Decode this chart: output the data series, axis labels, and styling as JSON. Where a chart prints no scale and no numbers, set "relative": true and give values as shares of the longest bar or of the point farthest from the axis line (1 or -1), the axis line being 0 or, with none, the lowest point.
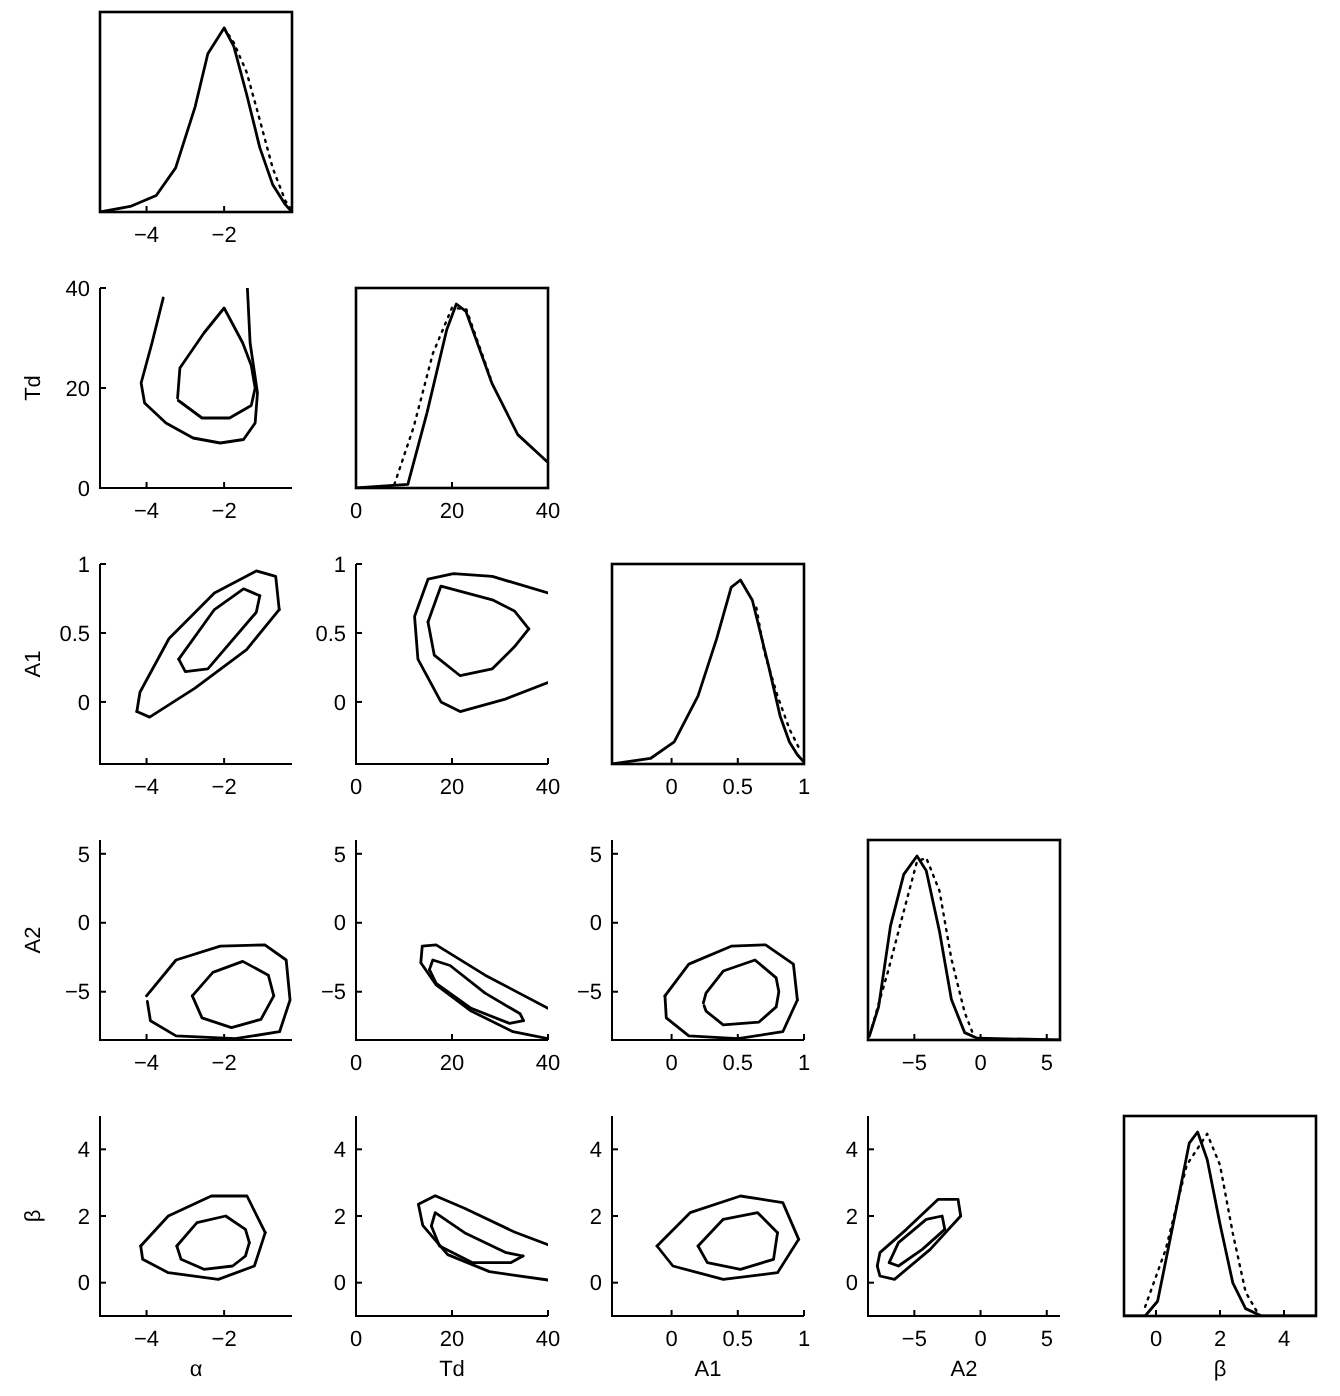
{
  "chart_data": [
    {
      "type": "line",
      "relative": true,
      "tick_labels": "x",
      "xlim": [
        -5.2,
        -0.25
      ],
      "xticks": [
        -4,
        -2
      ],
      "series": [
        {
          "color": "#000000",
          "line_style": "solid",
          "x": [
            -5.2,
            -4.42,
            -3.75,
            -3.25,
            -2.75,
            -2.42,
            -2.0,
            -1.75,
            -1.42,
            -1.08,
            -0.75,
            -0.42,
            -0.25
          ],
          "values": [
            0,
            0.03,
            0.09,
            0.24,
            0.57,
            0.86,
            1,
            0.9,
            0.64,
            0.35,
            0.15,
            0.04,
            0
          ]
        },
        {
          "color": "#000000",
          "line_style": "dotted",
          "x": [
            -2.0,
            -1.75,
            -1.42,
            -1.08,
            -0.75,
            -0.42,
            -0.25
          ],
          "values": [
            1,
            0.92,
            0.76,
            0.5,
            0.24,
            0.06,
            0.01
          ]
        }
      ]
    },
    {
      "type": "line",
      "ylabel": "Td",
      "xlim": [
        -5.2,
        -0.25
      ],
      "xticks": [
        -4,
        -2
      ],
      "ylim": [
        0,
        40
      ],
      "yticks": [
        0,
        20,
        40
      ],
      "series": [
        {
          "color": "#000000",
          "x": [
            -3.57,
            -3.86,
            -4.14,
            -4.05,
            -3.5,
            -2.8,
            -2.1,
            -1.5,
            -1.2,
            -1.14,
            -1.33,
            -1.4
          ],
          "values": [
            38,
            29,
            21,
            17,
            13,
            10,
            9,
            9.7,
            13,
            19,
            29,
            40
          ]
        },
        {
          "color": "#000000",
          "x": [
            -3.2,
            -3.14,
            -2.52,
            -2,
            -1.52,
            -1.3,
            -1.2,
            -1.3,
            -1.86,
            -2.57,
            -3.18
          ],
          "values": [
            18,
            24,
            31,
            36,
            29,
            24.5,
            20,
            16.5,
            14,
            14,
            17.5
          ]
        }
      ]
    },
    {
      "type": "line",
      "relative": true,
      "tick_labels": "x",
      "xlim": [
        0,
        40
      ],
      "xticks": [
        0,
        20,
        40
      ],
      "series": [
        {
          "color": "#000000",
          "line_style": "solid",
          "x": [
            0,
            10.8,
            14.8,
            18.9,
            20.9,
            22.9,
            28.3,
            33.7,
            39.1,
            40
          ],
          "values": [
            0,
            0.02,
            0.41,
            0.86,
            1,
            0.96,
            0.57,
            0.29,
            0.16,
            0.14
          ]
        },
        {
          "color": "#000000",
          "line_style": "dotted",
          "x": [
            8,
            12,
            16,
            20,
            23,
            28
          ],
          "values": [
            0.02,
            0.33,
            0.73,
            0.98,
            0.97,
            0.6
          ]
        }
      ]
    },
    {
      "type": "line",
      "ylabel": "A1",
      "xlim": [
        -5.2,
        -0.25
      ],
      "xticks": [
        -4,
        -2
      ],
      "ylim": [
        -0.45,
        1
      ],
      "yticks": [
        0,
        0.5,
        1
      ],
      "series": [
        {
          "color": "#000000",
          "x": [
            -4.25,
            -3.92,
            -2.75,
            -1.42,
            -0.58
          ],
          "values": [
            -0.07,
            -0.11,
            0.1,
            0.38,
            0.67
          ]
        },
        {
          "color": "#000000",
          "x": [
            -4.25,
            -4.17,
            -3.42,
            -2.25,
            -1.17,
            -0.67,
            -0.58
          ],
          "values": [
            -0.07,
            0.07,
            0.46,
            0.79,
            0.95,
            0.91,
            0.67
          ]
        },
        {
          "color": "#000000",
          "x": [
            -3.17,
            -3.0,
            -2.42,
            -1.17,
            -1.08
          ],
          "values": [
            0.31,
            0.22,
            0.24,
            0.65,
            0.77
          ]
        },
        {
          "color": "#000000",
          "x": [
            -3.17,
            -2.25,
            -1.5,
            -1.08
          ],
          "values": [
            0.31,
            0.67,
            0.82,
            0.77
          ]
        }
      ]
    },
    {
      "type": "line",
      "xlim": [
        0,
        40
      ],
      "xticks": [
        0,
        20,
        40
      ],
      "ylim": [
        -0.45,
        1
      ],
      "yticks": [
        0,
        0.5,
        1
      ],
      "series": [
        {
          "color": "#000000",
          "x": [
            40,
            28.4,
            20.3,
            15,
            12.2,
            12.9,
            17.7,
            21.7,
            31.1,
            40
          ],
          "values": [
            0.79,
            0.91,
            0.93,
            0.89,
            0.62,
            0.31,
            0,
            -0.07,
            0.02,
            0.14
          ]
        },
        {
          "color": "#000000",
          "x": [
            15,
            17.7,
            28.4,
            33,
            36
          ],
          "values": [
            0.58,
            0.84,
            0.74,
            0.66,
            0.53
          ]
        },
        {
          "color": "#000000",
          "x": [
            15,
            16.3,
            21.7,
            28.4,
            33,
            36
          ],
          "values": [
            0.58,
            0.34,
            0.19,
            0.24,
            0.4,
            0.53
          ]
        }
      ]
    },
    {
      "type": "line",
      "relative": true,
      "tick_labels": "x",
      "xlim": [
        -0.45,
        1
      ],
      "xticks": [
        0,
        0.5,
        1
      ],
      "series": [
        {
          "color": "#000000",
          "line_style": "solid",
          "x": [
            -0.45,
            -0.16,
            0.02,
            0.2,
            0.34,
            0.45,
            0.52,
            0.61,
            0.73,
            0.82,
            0.89,
            0.95,
            1
          ],
          "values": [
            0,
            0.03,
            0.12,
            0.37,
            0.68,
            0.96,
            1,
            0.89,
            0.54,
            0.26,
            0.12,
            0.05,
            0.01
          ]
        },
        {
          "color": "#000000",
          "line_style": "dotted",
          "x": [
            0.64,
            0.7,
            0.8,
            0.89,
            0.96
          ],
          "values": [
            0.85,
            0.61,
            0.37,
            0.19,
            0.09
          ]
        }
      ]
    },
    {
      "type": "line",
      "ylabel": "A2",
      "xlim": [
        -5.2,
        -0.25
      ],
      "xticks": [
        -4,
        -2
      ],
      "ylim": [
        -8.5,
        6
      ],
      "yticks": [
        -5,
        0,
        5
      ],
      "series": [
        {
          "color": "#000000",
          "x": [
            -4,
            -3.24,
            -2.1,
            -0.95,
            -0.4,
            -0.3,
            -0.57,
            -1.71,
            -3.24,
            -3.9,
            -3.98
          ],
          "values": [
            -5.3,
            -2.7,
            -1.7,
            -1.6,
            -2.7,
            -5.6,
            -7.9,
            -8.4,
            -8.2,
            -7.1,
            -5.7
          ]
        },
        {
          "color": "#000000",
          "x": [
            -2.82,
            -2.29,
            -1.52,
            -0.86,
            -0.72
          ],
          "values": [
            -5.3,
            -3.6,
            -2.8,
            -3.8,
            -5.3
          ]
        },
        {
          "color": "#000000",
          "x": [
            -2.82,
            -2.57,
            -1.81,
            -1.05,
            -0.72
          ],
          "values": [
            -5.3,
            -6.9,
            -7.6,
            -7.0,
            -5.3
          ]
        }
      ]
    },
    {
      "type": "line",
      "xlim": [
        0,
        40
      ],
      "xticks": [
        0,
        20,
        40
      ],
      "ylim": [
        -8.5,
        6
      ],
      "yticks": [
        -5,
        0,
        5
      ],
      "series": [
        {
          "color": "#000000",
          "x": [
            40,
            32.7,
            24,
            16.7,
            13.5,
            13.8,
            16.7,
            26.9,
            40
          ],
          "values": [
            -8.4,
            -7.9,
            -6.4,
            -4.5,
            -2.9,
            -1.7,
            -1.6,
            -3.8,
            -6.2
          ]
        },
        {
          "color": "#000000",
          "x": [
            15.3,
            16,
            19.6,
            26.9,
            34.2,
            34.9
          ],
          "values": [
            -3.4,
            -2.7,
            -3.1,
            -5.1,
            -6.6,
            -7.1
          ]
        },
        {
          "color": "#000000",
          "x": [
            15.3,
            16.7,
            24,
            32,
            34.9
          ],
          "values": [
            -3.4,
            -4.4,
            -6.2,
            -7.3,
            -7.1
          ]
        }
      ]
    },
    {
      "type": "line",
      "xlim": [
        -0.45,
        1
      ],
      "xticks": [
        0,
        0.5,
        1
      ],
      "ylim": [
        -8.5,
        6
      ],
      "yticks": [
        -5,
        0,
        5
      ],
      "series": [
        {
          "color": "#000000",
          "x": [
            -0.05,
            0.13,
            0.45,
            0.71,
            0.92,
            0.95
          ],
          "values": [
            -5.3,
            -3.0,
            -1.7,
            -1.6,
            -3.0,
            -5.6
          ]
        },
        {
          "color": "#000000",
          "x": [
            -0.05,
            -0.04,
            0.13,
            0.5,
            0.84,
            0.95
          ],
          "values": [
            -5.3,
            -6.9,
            -8.2,
            -8.4,
            -7.9,
            -5.6
          ]
        },
        {
          "color": "#000000",
          "x": [
            0.24,
            0.26,
            0.39,
            0.63,
            0.79,
            0.81,
            0.79,
            0.66,
            0.39,
            0.26,
            0.245
          ],
          "values": [
            -5.8,
            -5.1,
            -3.5,
            -2.7,
            -4.0,
            -5.0,
            -6.1,
            -7.2,
            -7.4,
            -6.4,
            -6.0
          ]
        }
      ]
    },
    {
      "type": "line",
      "relative": true,
      "tick_labels": "x",
      "xlim": [
        -8.5,
        6
      ],
      "xticks": [
        -5,
        0,
        5
      ],
      "series": [
        {
          "color": "#000000",
          "line_style": "solid",
          "x": [
            -8.4,
            -7.7,
            -6.8,
            -5.8,
            -4.8,
            -4.1,
            -3.1,
            -2.2,
            -1.2,
            -0.25,
            6
          ],
          "values": [
            0.02,
            0.18,
            0.62,
            0.9,
            1,
            0.92,
            0.59,
            0.22,
            0.04,
            0.01,
            0
          ]
        },
        {
          "color": "#000000",
          "line_style": "dotted",
          "x": [
            -8.2,
            -7.0,
            -5.8,
            -4.8,
            -4.1,
            -3.1,
            -2.2,
            -1.2,
            -0.5
          ],
          "values": [
            0.07,
            0.37,
            0.7,
            0.97,
            0.99,
            0.81,
            0.44,
            0.15,
            0.02
          ]
        }
      ]
    },
    {
      "type": "line",
      "xlabel": "α",
      "ylabel": "β",
      "xlim": [
        -5.2,
        -0.25
      ],
      "xticks": [
        -4,
        -2
      ],
      "ylim": [
        -1,
        5
      ],
      "yticks": [
        0,
        2,
        4
      ],
      "series": [
        {
          "color": "#000000",
          "x": [
            -4.15,
            -3.44,
            -2.33,
            -1.41,
            -0.94
          ],
          "values": [
            1.1,
            2.0,
            2.6,
            2.6,
            1.5
          ]
        },
        {
          "color": "#000000",
          "x": [
            -4.15,
            -4.1,
            -3.44,
            -2.15,
            -1.22,
            -0.94
          ],
          "values": [
            1.1,
            0.7,
            0.3,
            0.1,
            0.5,
            1.5
          ]
        },
        {
          "color": "#000000",
          "x": [
            -3.22,
            -2.7,
            -1.96,
            -1.45,
            -1.35
          ],
          "values": [
            1.1,
            1.8,
            2.0,
            1.6,
            1.2
          ]
        },
        {
          "color": "#000000",
          "x": [
            -3.22,
            -3.11,
            -2.52,
            -1.78,
            -1.45,
            -1.35
          ],
          "values": [
            1.1,
            0.7,
            0.4,
            0.5,
            0.8,
            1.2
          ]
        }
      ]
    },
    {
      "type": "line",
      "xlabel": "Td",
      "xlim": [
        0,
        40
      ],
      "xticks": [
        0,
        20,
        40
      ],
      "ylim": [
        -1,
        5
      ],
      "yticks": [
        0,
        2,
        4
      ],
      "series": [
        {
          "color": "#000000",
          "x": [
            40,
            33,
            22.6,
            16.5,
            13,
            13.9,
            19.1,
            27.8,
            40
          ],
          "values": [
            1.14,
            1.52,
            2.23,
            2.61,
            2.35,
            1.72,
            0.84,
            0.33,
            0.08
          ]
        },
        {
          "color": "#000000",
          "x": [
            15.7,
            16.5,
            22.6,
            31.3,
            34.8
          ],
          "values": [
            1.7,
            2.1,
            1.5,
            0.9,
            0.8
          ]
        },
        {
          "color": "#000000",
          "x": [
            15.7,
            17.4,
            24.3,
            32.2,
            34.8
          ],
          "values": [
            1.7,
            1.1,
            0.6,
            0.6,
            0.8
          ]
        }
      ]
    },
    {
      "type": "line",
      "xlabel": "A1",
      "xlim": [
        -0.45,
        1
      ],
      "xticks": [
        0,
        0.5,
        1
      ],
      "ylim": [
        -1,
        5
      ],
      "yticks": [
        0,
        2,
        4
      ],
      "series": [
        {
          "color": "#000000",
          "x": [
            -0.11,
            0.14,
            0.52,
            0.84,
            0.96
          ],
          "values": [
            1.1,
            2.1,
            2.6,
            2.4,
            1.3
          ]
        },
        {
          "color": "#000000",
          "x": [
            -0.11,
            0.01,
            0.39,
            0.8,
            0.96
          ],
          "values": [
            1.1,
            0.5,
            0.1,
            0.3,
            1.3
          ]
        },
        {
          "color": "#000000",
          "x": [
            0.2,
            0.39,
            0.65,
            0.8
          ],
          "values": [
            1.1,
            1.9,
            2.1,
            1.5
          ]
        },
        {
          "color": "#000000",
          "x": [
            0.2,
            0.27,
            0.52,
            0.77,
            0.8
          ],
          "values": [
            1.1,
            0.6,
            0.4,
            0.7,
            1.5
          ]
        }
      ]
    },
    {
      "type": "line",
      "xlabel": "A2",
      "xlim": [
        -8.5,
        6
      ],
      "xticks": [
        -5,
        0,
        5
      ],
      "ylim": [
        -1,
        5
      ],
      "yticks": [
        0,
        2,
        4
      ],
      "series": [
        {
          "color": "#000000",
          "x": [
            -7.8,
            -7.6,
            -5.6,
            -3.2,
            -1.7,
            -1.5
          ],
          "values": [
            0.5,
            0.9,
            1.6,
            2.5,
            2.5,
            2.0
          ]
        },
        {
          "color": "#000000",
          "x": [
            -7.8,
            -7.6,
            -6.5,
            -3.8,
            -1.5
          ],
          "values": [
            0.5,
            0.2,
            0.1,
            1.0,
            2.0
          ]
        },
        {
          "color": "#000000",
          "x": [
            -6.9,
            -6.2,
            -4.1,
            -2.9,
            -2.7
          ],
          "values": [
            0.6,
            1.2,
            1.9,
            2.0,
            1.6
          ]
        },
        {
          "color": "#000000",
          "x": [
            -6.9,
            -6.2,
            -4.4,
            -2.7
          ],
          "values": [
            0.6,
            0.5,
            1.0,
            1.6
          ]
        }
      ]
    },
    {
      "type": "line",
      "relative": true,
      "tick_labels": "x",
      "xlabel": "β",
      "xlim": [
        -1,
        5
      ],
      "xticks": [
        0,
        2,
        4
      ],
      "series": [
        {
          "color": "#000000",
          "line_style": "solid",
          "x": [
            -1,
            -0.34,
            0.05,
            0.7,
            1.04,
            1.3,
            1.6,
            2.0,
            2.4,
            2.8,
            3.3,
            5
          ],
          "values": [
            0,
            0,
            0.08,
            0.64,
            0.94,
            1,
            0.85,
            0.5,
            0.18,
            0.04,
            0,
            0
          ]
        },
        {
          "color": "#000000",
          "line_style": "dotted",
          "x": [
            -0.34,
            0.3,
            0.96,
            1.6,
            2.0,
            2.4,
            2.8,
            3.2
          ],
          "values": [
            0.05,
            0.36,
            0.82,
            0.99,
            0.82,
            0.45,
            0.13,
            0.01
          ]
        }
      ]
    }
  ]
}
